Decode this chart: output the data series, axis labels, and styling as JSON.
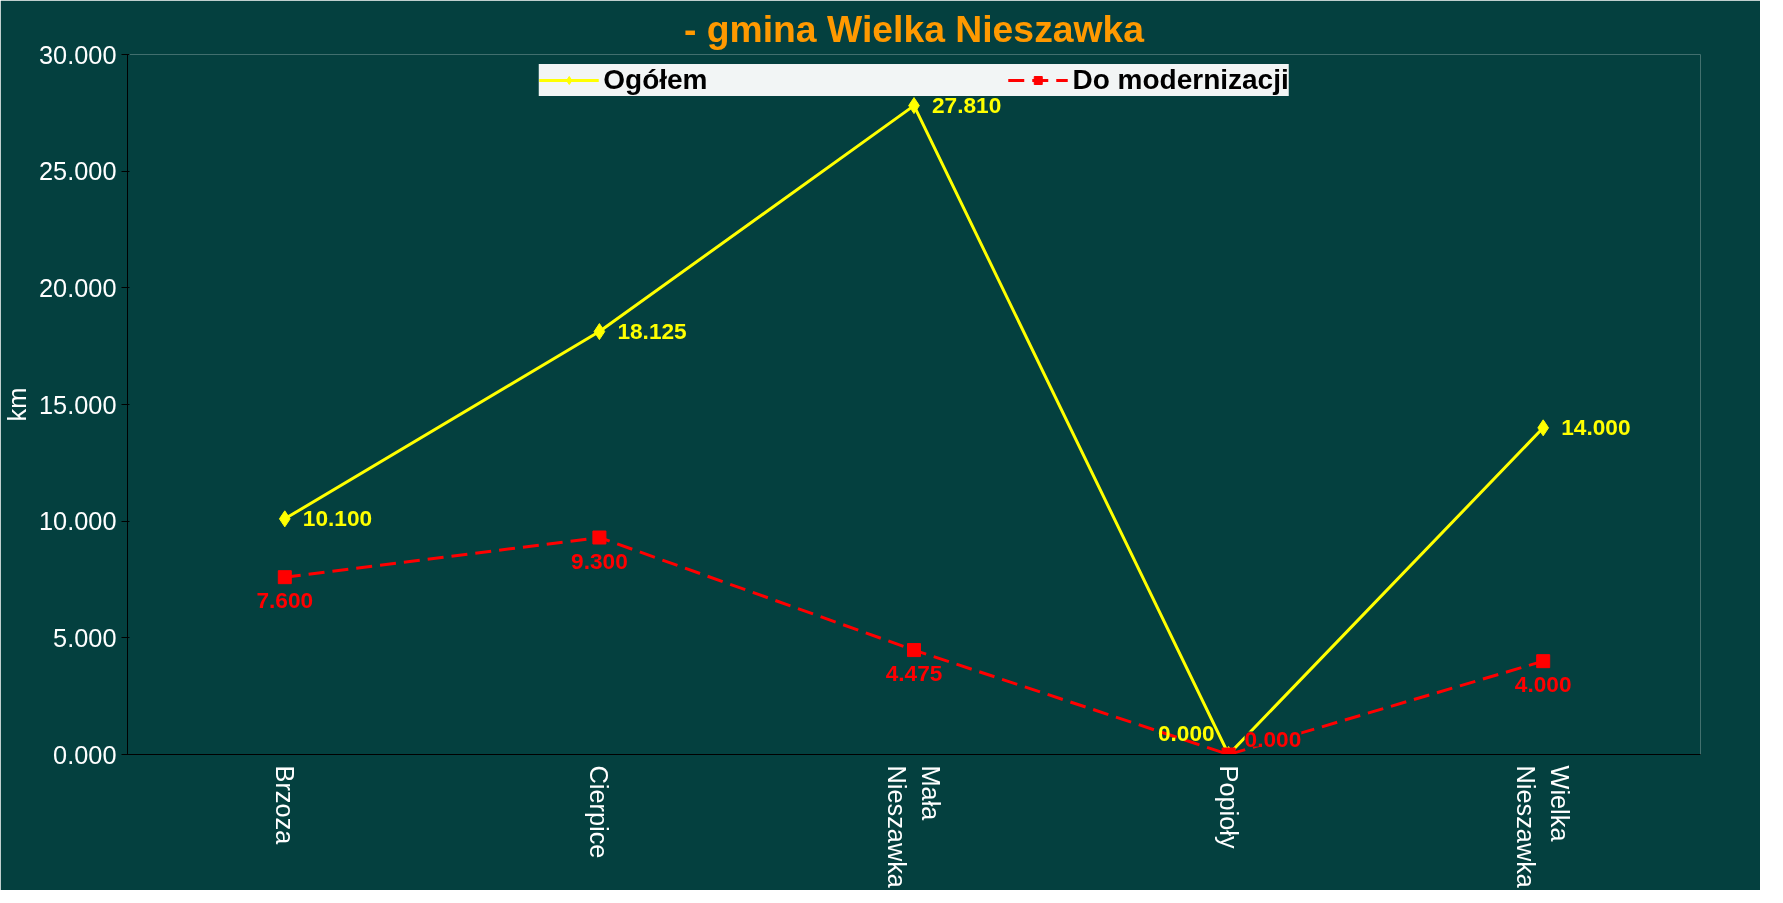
{
  "chart_data": {
    "type": "line",
    "title": "- gmina Wielka Nieszawka",
    "ylabel": "km",
    "categories": [
      "Brzoza",
      "Cierpice",
      "Mała Nieszawka",
      "Popioły",
      "Wielka Nieszawka"
    ],
    "series": [
      {
        "name": "Ogółem",
        "color": "#ffff00",
        "values": [
          10.1,
          18.125,
          27.81,
          0.0,
          14.0
        ],
        "value_labels": [
          "10.100",
          "18.125",
          "27.810",
          "0.000",
          "14.000"
        ],
        "marker": "diamond",
        "line_style": "solid"
      },
      {
        "name": "Do modernizacji",
        "color": "#ff0000",
        "values": [
          7.6,
          9.3,
          4.475,
          0.0,
          4.0
        ],
        "value_labels": [
          "7.600",
          "9.300",
          "4.475",
          "0.000",
          "4.000"
        ],
        "marker": "square",
        "line_style": "dashed"
      }
    ],
    "ylim": [
      0,
      30
    ],
    "yticks": [
      {
        "value": 0,
        "label": "0.000"
      },
      {
        "value": 5,
        "label": "5.000"
      },
      {
        "value": 10,
        "label": "10.000"
      },
      {
        "value": 15,
        "label": "15.000"
      },
      {
        "value": 20,
        "label": "20.000"
      },
      {
        "value": 25,
        "label": "25.000"
      },
      {
        "value": 30,
        "label": "30.000"
      }
    ],
    "grid": false,
    "legend": "top"
  }
}
